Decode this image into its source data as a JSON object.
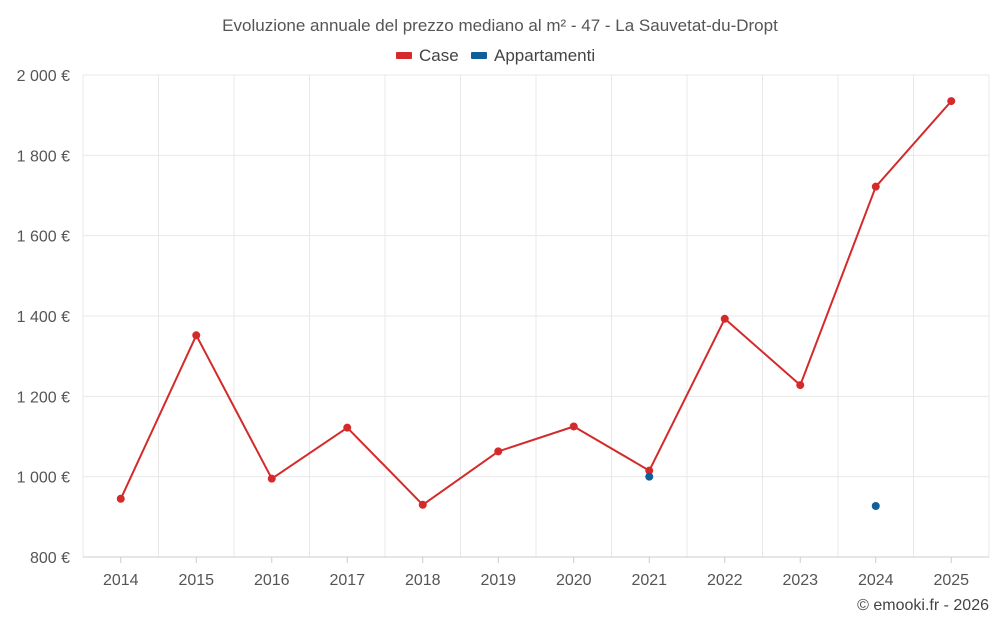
{
  "chart_data": {
    "type": "line",
    "title": "Evoluzione annuale del prezzo mediano al m² - 47 - La Sauvetat-du-Dropt",
    "categories": [
      "2014",
      "2015",
      "2016",
      "2017",
      "2018",
      "2019",
      "2020",
      "2021",
      "2022",
      "2023",
      "2024",
      "2025"
    ],
    "y_tick_labels": [
      "800 €",
      "1 000 €",
      "1 200 €",
      "1 400 €",
      "1 600 €",
      "1 800 €",
      "2 000 €"
    ],
    "y_ticks": [
      800,
      1000,
      1200,
      1400,
      1600,
      1800,
      2000
    ],
    "ylim": [
      800,
      2000
    ],
    "grid": true,
    "legend_position": "top-center",
    "series": [
      {
        "name": "Case",
        "color": "#d42a2a",
        "values": [
          945,
          1352,
          995,
          1122,
          930,
          1063,
          1125,
          1015,
          1393,
          1228,
          1722,
          1935
        ]
      },
      {
        "name": "Appartamenti",
        "color": "#0f5f9a",
        "values": [
          null,
          null,
          null,
          null,
          null,
          null,
          null,
          1000,
          null,
          null,
          927,
          null
        ]
      }
    ],
    "credit": "© emooki.fr - 2026"
  }
}
